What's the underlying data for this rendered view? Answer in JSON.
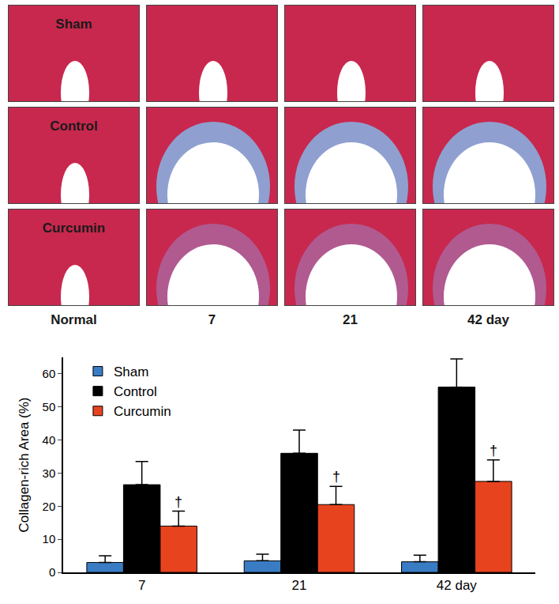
{
  "image_panels": {
    "rows": [
      "Sham",
      "Control",
      "Curcumin"
    ],
    "columns": [
      "Normal",
      "7",
      "21",
      "42 day"
    ]
  },
  "chart_data": {
    "type": "bar",
    "categories": [
      "7",
      "21",
      "42 day"
    ],
    "y_label": "Collagen-rich Area (%)",
    "series": [
      {
        "name": "Sham",
        "color": "#3a7cc4",
        "values": [
          3,
          3.5,
          3.2
        ],
        "errors": [
          2,
          2,
          2
        ]
      },
      {
        "name": "Control",
        "color": "#000000",
        "values": [
          26.5,
          36,
          56
        ],
        "errors": [
          7,
          7,
          8.5
        ]
      },
      {
        "name": "Curcumin",
        "color": "#e8431f",
        "values": [
          14,
          20.5,
          27.5
        ],
        "errors": [
          4.5,
          5.5,
          6.5
        ]
      }
    ],
    "annotations": [
      {
        "category": "7",
        "series": "Curcumin",
        "text": "†"
      },
      {
        "category": "21",
        "series": "Curcumin",
        "text": "†"
      },
      {
        "category": "42 day",
        "series": "Curcumin",
        "text": "†"
      }
    ],
    "ylim": [
      0,
      65
    ],
    "yticks": [
      0,
      10,
      20,
      30,
      40,
      50,
      60
    ],
    "grid": false,
    "legend": "top left"
  }
}
